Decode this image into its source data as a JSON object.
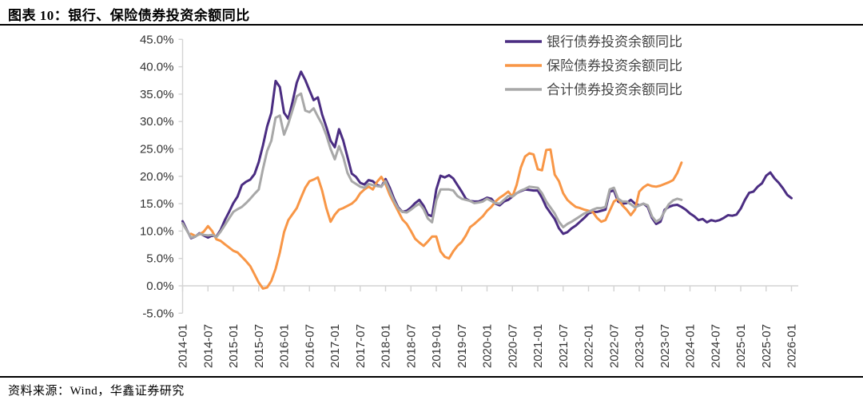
{
  "page": {
    "title": "图表 10：银行、保险债券投资余额同比",
    "source": "资料来源：Wind，华鑫证券研究"
  },
  "chart_data": {
    "type": "line",
    "title": "银行、保险债券投资余额同比",
    "xlabel": "",
    "ylabel": "",
    "x_unit": "month",
    "x_start": "2014-01",
    "x_end": "2026-01",
    "x_tick_labels": [
      "2014-01",
      "2014-07",
      "2015-01",
      "2015-07",
      "2016-01",
      "2016-07",
      "2017-01",
      "2017-07",
      "2018-01",
      "2018-07",
      "2019-01",
      "2019-07",
      "2020-01",
      "2020-07",
      "2021-01",
      "2021-07",
      "2022-01",
      "2022-07",
      "2023-01",
      "2023-07",
      "2024-01",
      "2024-07",
      "2025-01",
      "2025-07",
      "2026-01"
    ],
    "ylim": [
      -5,
      45
    ],
    "y_tick_step": 5,
    "y_tick_labels": [
      "45.0%",
      "40.0%",
      "35.0%",
      "30.0%",
      "25.0%",
      "20.0%",
      "15.0%",
      "10.0%",
      "5.0%",
      "0.0%",
      "-5.0%"
    ],
    "grid": false,
    "zero_line": true,
    "x_label_rotation": -90,
    "legend_position": "top-right",
    "axis_color": "#d3d3d3",
    "tick_text_color": "#333333",
    "series": [
      {
        "name": "银行债券投资余额同比",
        "color": "#4b2d82",
        "values": [
          11.8,
          10.2,
          8.7,
          9.0,
          9.6,
          9.2,
          8.8,
          9.2,
          9.0,
          10.2,
          12.0,
          13.5,
          15.1,
          16.3,
          18.4,
          19.0,
          19.4,
          20.4,
          22.6,
          25.6,
          29.1,
          31.6,
          37.4,
          36.3,
          31.6,
          30.5,
          33.6,
          37.1,
          39.1,
          37.6,
          35.7,
          33.9,
          34.4,
          31.3,
          29.0,
          26.5,
          25.3,
          28.6,
          26.5,
          23.5,
          20.5,
          19.9,
          18.8,
          18.5,
          19.3,
          19.1,
          18.4,
          18.1,
          19.5,
          17.9,
          15.9,
          14.3,
          13.5,
          13.7,
          14.3,
          15.1,
          15.7,
          14.6,
          13.0,
          12.7,
          17.6,
          20.1,
          19.8,
          20.2,
          19.6,
          18.4,
          17.2,
          15.9,
          15.5,
          15.4,
          15.4,
          15.7,
          16.1,
          15.9,
          15.0,
          14.7,
          15.4,
          15.7,
          16.3,
          16.9,
          17.3,
          17.6,
          17.5,
          17.4,
          17.4,
          16.1,
          14.4,
          13.3,
          12.2,
          10.5,
          9.5,
          9.8,
          10.5,
          11.0,
          11.7,
          12.4,
          13.2,
          13.5,
          13.5,
          13.7,
          13.9,
          17.2,
          17.4,
          15.4,
          15.0,
          15.1,
          15.7,
          15.0,
          14.7,
          15.0,
          14.4,
          12.4,
          11.3,
          11.7,
          13.9,
          14.4,
          14.7,
          14.8,
          14.4,
          13.9,
          13.2,
          12.7,
          12.0,
          12.2,
          11.6,
          12.0,
          11.8,
          12.0,
          12.4,
          12.9,
          12.8,
          13.0,
          14.1,
          15.7,
          17.0,
          17.2,
          18.1,
          18.7,
          20.1,
          20.7,
          19.6,
          18.8,
          17.8,
          16.6,
          16.0
        ]
      },
      {
        "name": "保险债券投资余额同比",
        "color": "#f89646",
        "values": [
          null,
          null,
          9.5,
          9.1,
          9.4,
          9.9,
          10.9,
          10.0,
          8.5,
          8.2,
          7.6,
          7.0,
          6.4,
          6.1,
          5.3,
          4.5,
          3.6,
          2.1,
          0.6,
          -0.5,
          -0.3,
          0.9,
          3.1,
          6.1,
          9.8,
          12.0,
          13.1,
          14.2,
          16.1,
          17.9,
          19.1,
          19.4,
          19.8,
          17.4,
          14.2,
          11.7,
          13.0,
          13.9,
          14.2,
          14.6,
          15.0,
          15.7,
          16.9,
          17.6,
          18.1,
          17.6,
          19.0,
          19.9,
          18.6,
          16.6,
          15.1,
          13.6,
          12.1,
          11.3,
          10.0,
          8.6,
          7.9,
          7.3,
          8.1,
          9.0,
          9.0,
          6.3,
          5.3,
          5.0,
          6.3,
          7.3,
          8.0,
          9.2,
          10.7,
          11.3,
          12.0,
          12.7,
          13.7,
          14.4,
          15.4,
          16.1,
          16.6,
          17.2,
          16.3,
          18.4,
          21.6,
          23.6,
          24.2,
          24.0,
          21.3,
          21.1,
          24.8,
          24.9,
          20.3,
          19.1,
          16.9,
          15.7,
          15.0,
          14.4,
          14.2,
          13.9,
          13.7,
          13.5,
          12.4,
          11.7,
          12.0,
          13.7,
          15.4,
          15.9,
          14.7,
          13.9,
          12.9,
          13.9,
          17.2,
          18.0,
          18.5,
          18.2,
          18.1,
          18.3,
          18.6,
          18.9,
          19.3,
          20.6,
          22.5
        ]
      },
      {
        "name": "合计债券投资余额同比",
        "color": "#a8a8a8",
        "values": [
          11.4,
          10.1,
          8.8,
          9.0,
          9.5,
          9.3,
          9.2,
          9.3,
          8.9,
          9.9,
          11.1,
          12.3,
          13.5,
          14.0,
          14.4,
          15.1,
          15.9,
          16.8,
          17.6,
          21.3,
          24.6,
          26.5,
          30.7,
          31.1,
          27.6,
          29.6,
          32.1,
          34.6,
          35.1,
          32.0,
          31.7,
          32.4,
          30.9,
          29.5,
          27.5,
          25.0,
          23.1,
          25.5,
          23.5,
          20.6,
          19.1,
          18.6,
          18.1,
          17.9,
          18.6,
          18.4,
          18.2,
          18.1,
          19.1,
          17.3,
          15.5,
          14.1,
          13.5,
          13.4,
          13.9,
          14.5,
          15.0,
          14.0,
          12.3,
          11.6,
          15.6,
          17.6,
          17.6,
          17.6,
          17.4,
          16.4,
          15.9,
          15.7,
          15.5,
          15.1,
          15.2,
          15.4,
          15.9,
          15.5,
          15.1,
          15.0,
          15.7,
          16.4,
          16.3,
          16.9,
          17.4,
          17.7,
          18.1,
          18.0,
          17.9,
          16.9,
          15.4,
          14.3,
          13.2,
          11.7,
          10.7,
          11.3,
          11.7,
          12.2,
          12.7,
          13.2,
          13.5,
          13.9,
          14.2,
          14.2,
          14.4,
          17.6,
          17.9,
          15.9,
          15.4,
          15.4,
          14.9,
          14.3,
          14.7,
          15.0,
          14.7,
          12.7,
          11.7,
          12.2,
          13.6,
          14.9,
          15.6,
          15.9,
          15.7
        ]
      }
    ]
  }
}
